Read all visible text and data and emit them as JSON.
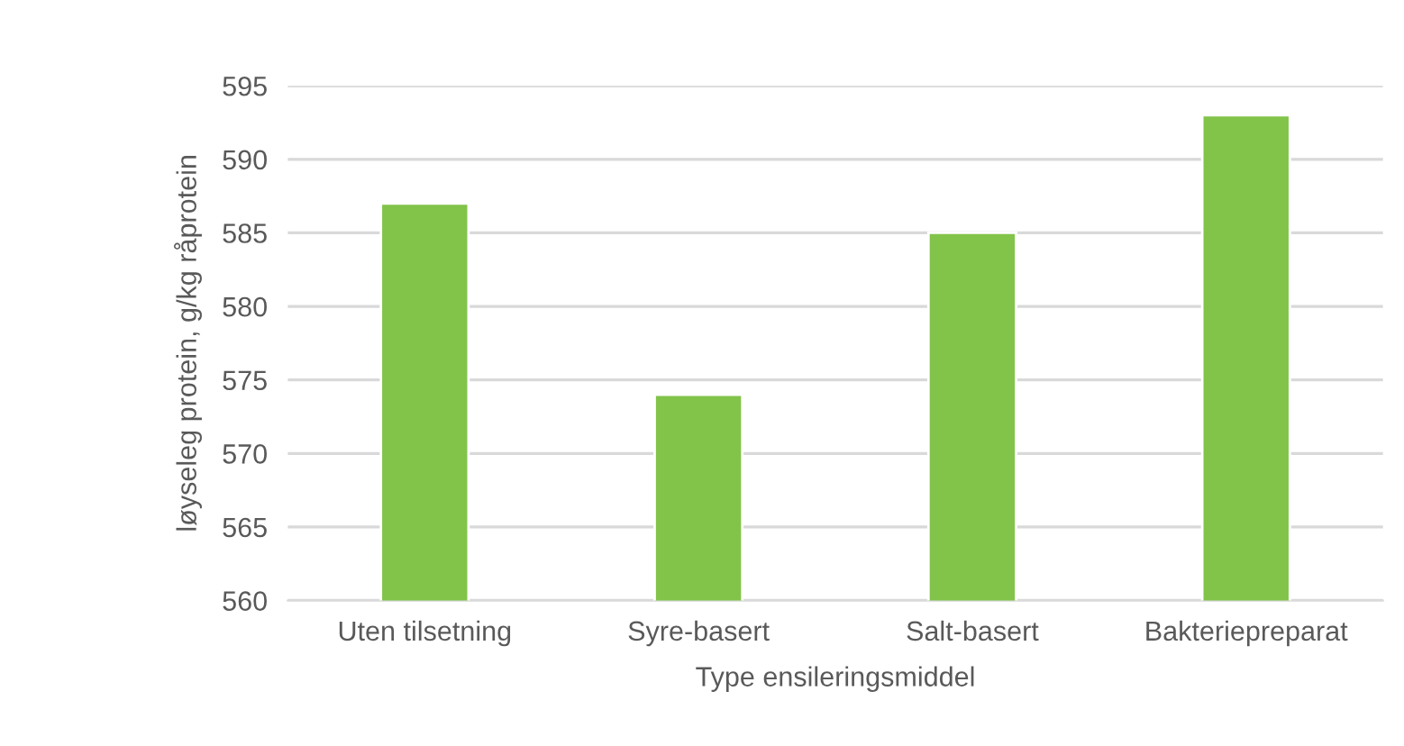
{
  "chart_data": {
    "type": "bar",
    "xlabel": "Type ensileringsmiddel",
    "ylabel": "løyseleg protein, g/kg råprotein",
    "categories": [
      "Uten tilsetning",
      "Syre-basert",
      "Salt-basert",
      "Bakteriepreparat"
    ],
    "values": [
      587,
      574,
      585,
      593
    ],
    "color": "#82c34a",
    "ylim": [
      560,
      595
    ],
    "yticks": [
      560,
      565,
      570,
      575,
      580,
      585,
      590,
      595
    ],
    "grid": "y"
  }
}
